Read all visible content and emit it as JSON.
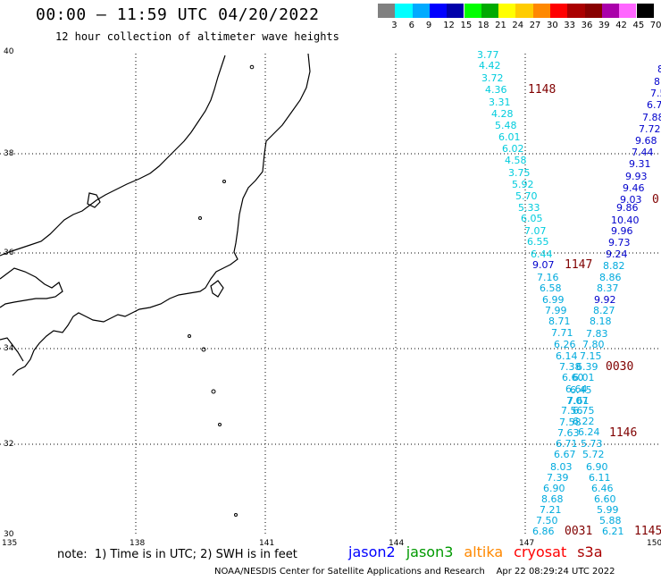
{
  "title": "00:00 – 11:59 UTC 04/20/2022",
  "subtitle": "12 hour collection of altimeter wave heights",
  "color_scale": {
    "colors": [
      "#808080",
      "#00ffff",
      "#00aaff",
      "#0000ff",
      "#0000aa",
      "#00ff00",
      "#00aa00",
      "#ffff00",
      "#ffcc00",
      "#ff8800",
      "#ff0000",
      "#aa0000",
      "#880000",
      "#aa00aa",
      "#ff66ff",
      "#000000"
    ],
    "labels": [
      "3",
      "6",
      "9",
      "12",
      "15",
      "18",
      "21",
      "24",
      "27",
      "30",
      "33",
      "36",
      "39",
      "42",
      "45",
      "70 (ft)"
    ]
  },
  "axes": {
    "y_ticks": [
      "40",
      "38",
      "36",
      "34",
      "32",
      "30"
    ],
    "x_ticks": [
      "135",
      "138",
      "141",
      "144",
      "147",
      "150"
    ]
  },
  "note": "note:  1) Time is in UTC; 2) SWH is in feet",
  "legend": [
    {
      "name": "jason2",
      "color": "#0000ff"
    },
    {
      "name": "jason3",
      "color": "#009900"
    },
    {
      "name": "altika",
      "color": "#ff8800"
    },
    {
      "name": "cryosat",
      "color": "#ff0000"
    },
    {
      "name": "s3a",
      "color": "#aa0000"
    }
  ],
  "footer": "NOAA/NESDIS Center for Satellite Applications and Research    Apr 22 08:29:24 UTC 2022",
  "pass_times": [
    "1148",
    "1147",
    "0030",
    "1146",
    "0031",
    "1145",
    "0"
  ],
  "track_a": {
    "color": "#00ccdd",
    "values": [
      "3.77",
      "4.42",
      "3.72",
      "4.36",
      "3.31",
      "4.28",
      "5.48",
      "6.01",
      "6.02",
      "4.58",
      "3.75",
      "5.92",
      "5.70",
      "5.33",
      "6.05",
      "7.07",
      "6.55",
      "6.44"
    ]
  },
  "track_b": {
    "color": "#0000cc",
    "values": [
      "8",
      "8.",
      "7.5",
      "6.7",
      "7.88",
      "7.72",
      "9.68",
      "7.44",
      "9.31",
      "9.93",
      "9.46",
      "9.03",
      "9.86",
      "10.40",
      "9.96",
      "9.73",
      "9.24",
      "9.07",
      "9.92"
    ]
  },
  "track_c": {
    "color": "#00aadd",
    "values": [
      "8.82",
      "8.86",
      "8.37",
      "8.27",
      "8.18",
      "7.83",
      "7.80",
      "7.15",
      "6.39",
      "6.01",
      "6.45",
      "7.07",
      "6.75",
      "6.22",
      "6.24",
      "5.73",
      "5.72",
      "6.90",
      "6.11",
      "6.46",
      "6.60",
      "5.99",
      "5.88",
      "6.21"
    ]
  },
  "track_d": {
    "color": "#00aadd",
    "values": [
      "7.16",
      "6.58",
      "6.99",
      "7.99",
      "8.71",
      "7.71",
      "6.26",
      "6.14",
      "7.38",
      "6.60",
      "6.64",
      "7.61",
      "7.56",
      "7.58",
      "7.63",
      "6.71",
      "6.67",
      "8.03",
      "7.39",
      "6.90",
      "8.68",
      "7.21",
      "7.50",
      "6.86"
    ]
  }
}
